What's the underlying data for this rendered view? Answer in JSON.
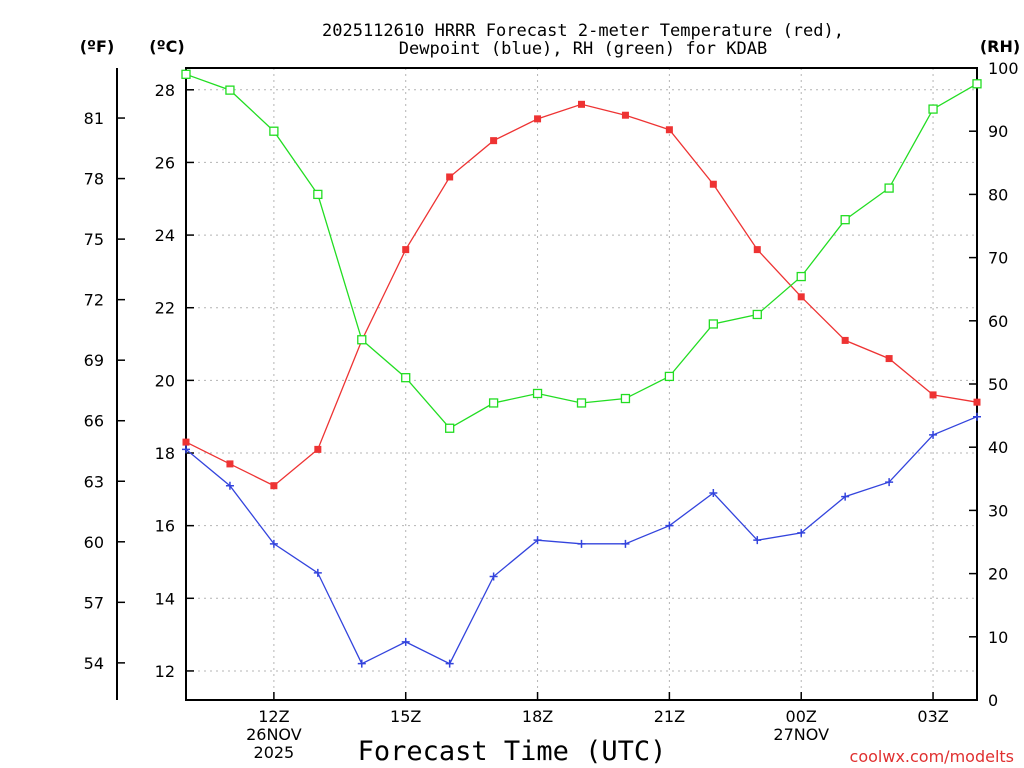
{
  "chart_data": {
    "type": "line",
    "title_line1": "2025112610 HRRR Forecast 2-meter Temperature (red),",
    "title_line2": "Dewpoint (blue), RH (green) for KDAB",
    "xlabel": "Forecast Time (UTC)",
    "left_unit_f": "(ºF)",
    "left_unit_c": "(ºC)",
    "right_unit": "(RH)",
    "watermark": "coolwx.com/modelts",
    "x_hours": [
      10,
      11,
      12,
      13,
      14,
      15,
      16,
      17,
      18,
      19,
      20,
      21,
      22,
      23,
      24,
      25,
      26,
      27,
      28
    ],
    "x_range": [
      10,
      28
    ],
    "celsius_range": [
      11.2,
      28.6
    ],
    "celsius_ticks": [
      12,
      14,
      16,
      18,
      20,
      22,
      24,
      26,
      28
    ],
    "fahrenheit_ticks": [
      54,
      57,
      60,
      63,
      66,
      69,
      72,
      75,
      78,
      81
    ],
    "rh_range": [
      0,
      100
    ],
    "rh_ticks": [
      0,
      10,
      20,
      30,
      40,
      50,
      60,
      70,
      80,
      90,
      100
    ],
    "x_ticks": [
      {
        "hour": 12,
        "lines": [
          "12Z",
          "26NOV",
          "2025"
        ]
      },
      {
        "hour": 15,
        "lines": [
          "15Z"
        ]
      },
      {
        "hour": 18,
        "lines": [
          "18Z"
        ]
      },
      {
        "hour": 21,
        "lines": [
          "21Z"
        ]
      },
      {
        "hour": 24,
        "lines": [
          "00Z",
          "27NOV"
        ]
      },
      {
        "hour": 27,
        "lines": [
          "03Z"
        ]
      }
    ],
    "series": [
      {
        "name": "Temperature",
        "axis": "celsius",
        "color": "#ee3333",
        "marker": "filled-square",
        "values": [
          18.3,
          17.7,
          17.1,
          18.1,
          21.1,
          23.6,
          25.6,
          26.6,
          27.2,
          27.6,
          27.3,
          26.9,
          25.4,
          23.6,
          22.3,
          21.1,
          20.6,
          19.6,
          19.4
        ]
      },
      {
        "name": "Dewpoint",
        "axis": "celsius",
        "color": "#3344dd",
        "marker": "plus",
        "values": [
          18.1,
          17.1,
          15.5,
          14.7,
          12.2,
          12.8,
          12.2,
          14.6,
          15.6,
          15.5,
          15.5,
          16.0,
          16.9,
          15.6,
          15.8,
          16.8,
          17.2,
          18.5,
          19.0
        ]
      },
      {
        "name": "RH",
        "axis": "rh",
        "color": "#22dd22",
        "marker": "open-square",
        "values": [
          99,
          96.5,
          90,
          80,
          57,
          51,
          43,
          47,
          48.5,
          47,
          47.7,
          51.2,
          59.5,
          61,
          67,
          76,
          81,
          93.5,
          97.5
        ]
      }
    ]
  }
}
